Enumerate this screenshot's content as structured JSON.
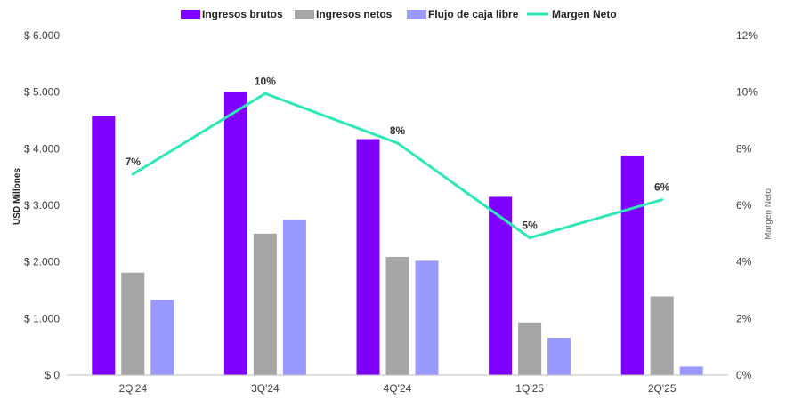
{
  "chart_data": {
    "type": "bar",
    "categories": [
      "2Q'24",
      "3Q'24",
      "4Q'24",
      "1Q'25",
      "2Q'25"
    ],
    "series": [
      {
        "name": "Ingresos brutos",
        "type": "bar",
        "color": "#8000FF",
        "values": [
          4580,
          5000,
          4170,
          3150,
          3880
        ]
      },
      {
        "name": "Ingresos netos",
        "type": "bar",
        "color": "#A6A6A6",
        "values": [
          1810,
          2500,
          2090,
          930,
          1390
        ]
      },
      {
        "name": "Flujo de caja libre",
        "type": "bar",
        "color": "#9999FF",
        "values": [
          1330,
          2740,
          2020,
          660,
          150
        ]
      },
      {
        "name": "Margen Neto",
        "type": "line",
        "axis": "right",
        "color": "#2EE8B8",
        "values": [
          7.1,
          9.95,
          8.2,
          4.85,
          6.2
        ],
        "labels": [
          "7%",
          "10%",
          "8%",
          "5%",
          "6%"
        ]
      }
    ],
    "yaxis_left": {
      "label": "USD Millones",
      "range": [
        0,
        6000
      ],
      "ticks": [
        0,
        1000,
        2000,
        3000,
        4000,
        5000,
        6000
      ],
      "tick_labels": [
        "$ 0",
        "$ 1.000",
        "$ 2.000",
        "$ 3.000",
        "$ 4.000",
        "$ 5.000",
        "$ 6.000"
      ]
    },
    "yaxis_right": {
      "label": "Margen Neto",
      "range": [
        0,
        12
      ],
      "ticks": [
        0,
        2,
        4,
        6,
        8,
        10,
        12
      ],
      "tick_labels": [
        "0%",
        "2%",
        "4%",
        "6%",
        "8%",
        "10%",
        "12%"
      ]
    },
    "grid": false,
    "legend": "top"
  }
}
